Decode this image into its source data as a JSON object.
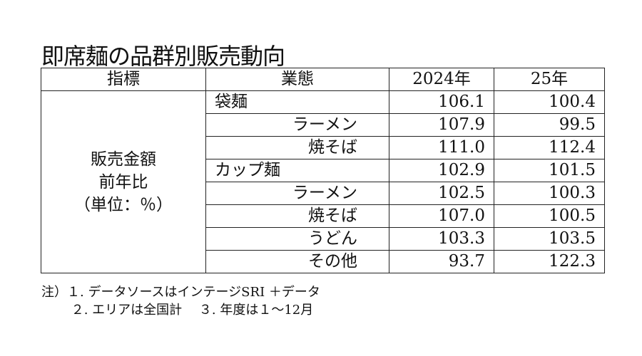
{
  "title": "即席麺の品群別販売動向",
  "table": {
    "headers": [
      "指標",
      "業態",
      "2024年",
      "25年"
    ],
    "indicator": [
      "販売金額",
      "前年比",
      "（単位：％）"
    ],
    "rows": [
      {
        "type": "袋麺",
        "level": "category",
        "y2024": "106.1",
        "y2025": "100.4"
      },
      {
        "type": "ラーメン",
        "level": "sub",
        "y2024": "107.9",
        "y2025": "99.5"
      },
      {
        "type": "焼そば",
        "level": "sub",
        "y2024": "111.0",
        "y2025": "112.4"
      },
      {
        "type": "カップ麺",
        "level": "category",
        "y2024": "102.9",
        "y2025": "101.5"
      },
      {
        "type": "ラーメン",
        "level": "sub",
        "y2024": "102.5",
        "y2025": "100.3"
      },
      {
        "type": "焼そば",
        "level": "sub",
        "y2024": "107.0",
        "y2025": "100.5"
      },
      {
        "type": "うどん",
        "level": "sub",
        "y2024": "103.3",
        "y2025": "103.5"
      },
      {
        "type": "その他",
        "level": "sub",
        "y2024": "93.7",
        "y2025": "122.3"
      }
    ]
  },
  "notes": [
    "注）１. データソースはインテージSRI ＋データ",
    "　　 ２. エリアは全国計　 ３. 年度は１～12月"
  ]
}
